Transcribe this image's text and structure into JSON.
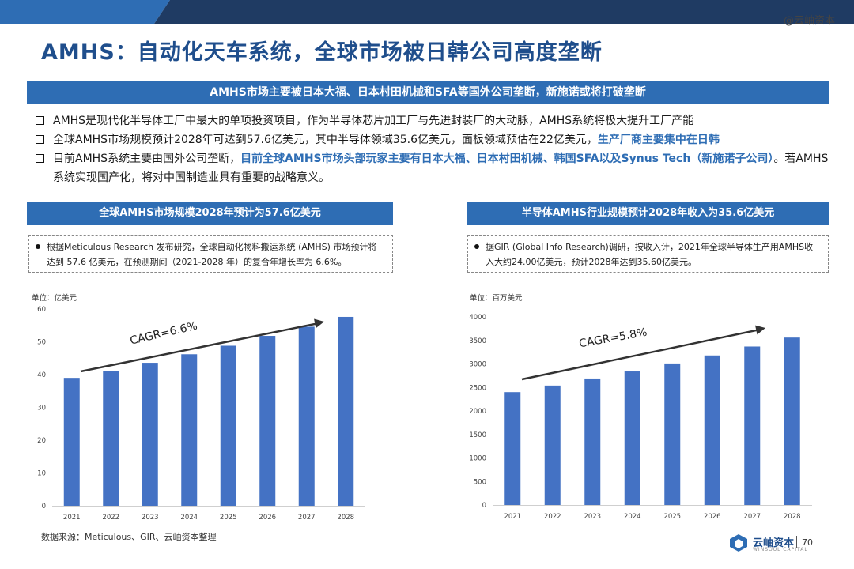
{
  "header": {
    "watermark": "@云岫资本"
  },
  "title": "AMHS：自动化天车系统，全球市场被日韩公司高度垄断",
  "banner": "AMHS市场主要被日本大福、日本村田机械和SFA等国外公司垄断，新施诺或将打破垄断",
  "bullets": [
    {
      "text": "AMHS是现代化半导体工厂中最大的单项投资项目，作为半导体芯片加工厂与先进封装厂的大动脉，AMHS系统将极大提升工厂产能"
    },
    {
      "text": "全球AMHS市场规模预计2028年可达到57.6亿美元，其中半导体领域35.6亿美元，面板领域预估在22亿美元，",
      "highlight": "生产厂商主要集中在日韩"
    },
    {
      "text": "目前AMHS系统主要由国外公司垄断，",
      "highlight": "目前全球AMHS市场头部玩家主要有日本大福、日本村田机械、韩国SFA以及Synus Tech（新施诺子公司）",
      "tail": "。若AMHS系统实现国产化，将对中国制造业具有重要的战略意义。"
    }
  ],
  "left_panel": {
    "title": "全球AMHS市场规模2028年预计为57.6亿美元",
    "note": "根据Meticulous Research 发布研究，全球自动化物料搬运系统 (AMHS) 市场预计将达到 57.6 亿美元，在预测期间（2021-2028 年）的复合年增长率为 6.6%。",
    "unit": "单位：亿美元"
  },
  "right_panel": {
    "title": "半导体AMHS行业规模预计2028年收入为35.6亿美元",
    "note": "据GIR (Global Info Research)调研，按收入计，2021年全球半导体生产用AMHS收入大约24.00亿美元，预计2028年达到35.60亿美元。",
    "unit": "单位：百万美元"
  },
  "chart_data": [
    {
      "type": "bar",
      "categories": [
        "2021",
        "2022",
        "2023",
        "2024",
        "2025",
        "2026",
        "2027",
        "2028"
      ],
      "values": [
        39,
        41.2,
        43.6,
        46.2,
        48.8,
        51.8,
        54.6,
        57.6
      ],
      "ylim": [
        0,
        60
      ],
      "yticks": [
        0,
        10,
        20,
        30,
        40,
        50,
        60
      ],
      "annotation": "CAGR=6.6%",
      "color": "#4472c4"
    },
    {
      "type": "bar",
      "categories": [
        "2021",
        "2022",
        "2023",
        "2024",
        "2025",
        "2026",
        "2027",
        "2028"
      ],
      "values": [
        2400,
        2540,
        2690,
        2840,
        3010,
        3180,
        3370,
        3560
      ],
      "ylim": [
        0,
        4000
      ],
      "yticks": [
        0,
        500,
        1000,
        1500,
        2000,
        2500,
        3000,
        3500,
        4000
      ],
      "annotation": "CAGR=5.8%",
      "color": "#4472c4"
    }
  ],
  "footer": {
    "source": "数据来源：Meticulous、GIR、云岫资本整理",
    "logo_text": "云岫资本",
    "logo_sub": "WINSOUL CAPITAL",
    "page": "70"
  }
}
